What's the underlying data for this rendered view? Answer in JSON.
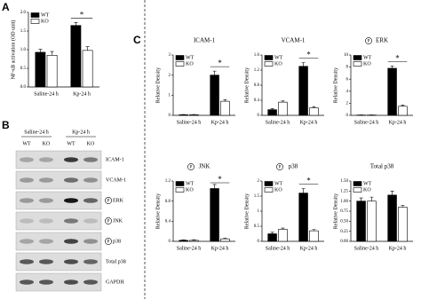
{
  "panels": {
    "a": "A",
    "b": "B",
    "c": "C"
  },
  "chart_data": [
    {
      "type": "bar",
      "ylabel": "NF-κB activation (OD unit)",
      "categories": [
        "Saline-24 h",
        "Kp-24 h"
      ],
      "series": [
        {
          "name": "WT",
          "color": "#000000",
          "values": [
            0.93,
            1.65
          ],
          "errors": [
            0.08,
            0.08
          ]
        },
        {
          "name": "KO",
          "color": "#ffffff",
          "values": [
            0.85,
            0.98
          ],
          "errors": [
            0.1,
            0.1
          ]
        }
      ],
      "ylim": [
        0,
        2
      ],
      "yticks": [
        {
          "value": 0,
          "label": "0.0"
        },
        0.5,
        {
          "value": 1,
          "label": "1.0"
        },
        1.5,
        {
          "value": 2,
          "label": "2.0"
        }
      ],
      "significance": "*"
    },
    {
      "type": "bar",
      "title": "ICAM-1",
      "ylabel": "Relative Density",
      "categories": [
        "Saline-24 h",
        "Kp-24 h"
      ],
      "series": [
        {
          "name": "WT",
          "color": "#000000",
          "values": [
            0.03,
            2.0
          ],
          "errors": [
            0.01,
            0.2
          ]
        },
        {
          "name": "KO",
          "color": "#ffffff",
          "values": [
            0.03,
            0.7
          ],
          "errors": [
            0.01,
            0.08
          ]
        }
      ],
      "ylim": [
        0,
        3
      ],
      "yticks": [
        0,
        1,
        2,
        3
      ],
      "significance": "*"
    },
    {
      "type": "bar",
      "title": "VCAM-1",
      "ylabel": "Relative Density",
      "categories": [
        "Saline-24 h",
        "Kp-24 h"
      ],
      "series": [
        {
          "name": "WT",
          "color": "#000000",
          "values": [
            0.15,
            1.3
          ],
          "errors": [
            0.03,
            0.1
          ]
        },
        {
          "name": "KO",
          "color": "#ffffff",
          "values": [
            0.35,
            0.2
          ],
          "errors": [
            0.03,
            0.03
          ]
        }
      ],
      "ylim": [
        0,
        1.6
      ],
      "yticks": [
        0,
        0.4,
        0.8,
        1.2,
        1.6
      ],
      "significance": "*"
    },
    {
      "type": "bar",
      "title": "ERK",
      "phospho": "P",
      "ylabel": "Relative Density",
      "categories": [
        "Saline-24 h",
        "Kp-24 h"
      ],
      "series": [
        {
          "name": "WT",
          "color": "#000000",
          "values": [
            0.05,
            7.8
          ],
          "errors": [
            0.02,
            0.4
          ]
        },
        {
          "name": "KO",
          "color": "#ffffff",
          "values": [
            0.05,
            1.5
          ],
          "errors": [
            0.02,
            0.2
          ]
        }
      ],
      "ylim": [
        0,
        10
      ],
      "yticks": [
        0,
        2,
        4,
        6,
        8,
        10
      ],
      "significance": "*"
    },
    {
      "type": "bar",
      "title": "JNK",
      "phospho": "P",
      "ylabel": "Relative Density",
      "categories": [
        "Saline-24 h",
        "Kp-24 h"
      ],
      "series": [
        {
          "name": "WT",
          "color": "#000000",
          "values": [
            0.02,
            1.05
          ],
          "errors": [
            0.01,
            0.08
          ]
        },
        {
          "name": "KO",
          "color": "#ffffff",
          "values": [
            0.02,
            0.05
          ],
          "errors": [
            0.01,
            0.01
          ]
        }
      ],
      "ylim": [
        0,
        1.2
      ],
      "yticks": [
        0,
        0.4,
        0.8,
        1.2
      ],
      "significance": "*"
    },
    {
      "type": "bar",
      "title": "p38",
      "phospho": "P",
      "ylabel": "Relative Density",
      "categories": [
        "Saline-24 h",
        "Kp-24 h"
      ],
      "series": [
        {
          "name": "WT",
          "color": "#000000",
          "values": [
            0.25,
            1.6
          ],
          "errors": [
            0.05,
            0.15
          ]
        },
        {
          "name": "KO",
          "color": "#ffffff",
          "values": [
            0.4,
            0.35
          ],
          "errors": [
            0.04,
            0.04
          ]
        }
      ],
      "ylim": [
        0,
        2
      ],
      "yticks": [
        0,
        0.5,
        1,
        1.5,
        2
      ],
      "significance": "*"
    },
    {
      "type": "bar",
      "title": "Total p38",
      "ylabel": "Relative Density",
      "categories": [
        "Saline-24 h",
        "Kp-24 h"
      ],
      "series": [
        {
          "name": "WT",
          "color": "#000000",
          "values": [
            1.0,
            1.15
          ],
          "errors": [
            0.08,
            0.1
          ]
        },
        {
          "name": "KO",
          "color": "#ffffff",
          "values": [
            1.0,
            0.85
          ],
          "errors": [
            0.1,
            0.04
          ]
        }
      ],
      "ylim": [
        0,
        1.5
      ],
      "yticks": [
        {
          "value": 0,
          "label": "0.00"
        },
        0.25,
        {
          "value": 0.5,
          "label": "0.50"
        },
        0.75,
        {
          "value": 1,
          "label": "1.00"
        },
        1.25,
        {
          "value": 1.5,
          "label": "1.50"
        }
      ]
    }
  ],
  "blot": {
    "groups": [
      "Saline-24 h",
      "Kp-24 h"
    ],
    "lanes": [
      "WT",
      "KO",
      "WT",
      "KO"
    ],
    "rows": [
      {
        "name": "ICAM-1"
      },
      {
        "name": "VCAM-1"
      },
      {
        "name": "ERK",
        "phospho": "P"
      },
      {
        "name": "JNK",
        "phospho": "P"
      },
      {
        "name": "p38",
        "phospho": "P"
      },
      {
        "name": "Total p38"
      },
      {
        "name": "GAPDH"
      }
    ]
  }
}
